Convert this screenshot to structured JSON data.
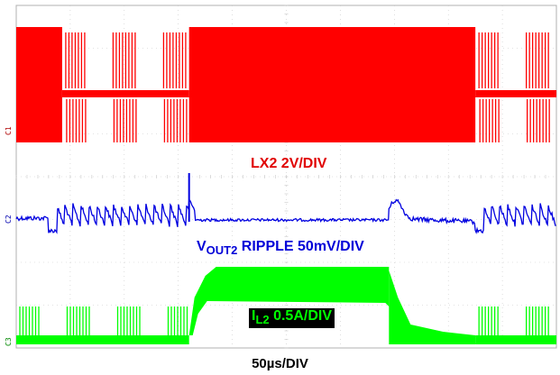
{
  "chart_data": {
    "type": "line",
    "title": "",
    "xlabel": "50µs/DIV",
    "ylabel": "",
    "grid": true,
    "time_per_division_us": 50,
    "divisions": {
      "x": 10,
      "y": 8
    },
    "series": [
      {
        "name": "LX2 2V/DIV",
        "color": "#ff0000",
        "description": "switch node; burst-mode pulses, then continuous switching during load step, then burst pulses",
        "segments": [
          {
            "t_start_div": 0.0,
            "t_end_div": 0.85,
            "mode": "continuous"
          },
          {
            "t_start_div": 0.85,
            "t_end_div": 3.2,
            "mode": "burst"
          },
          {
            "t_start_div": 3.2,
            "t_end_div": 8.5,
            "mode": "continuous"
          },
          {
            "t_start_div": 8.5,
            "t_end_div": 10.0,
            "mode": "burst"
          }
        ]
      },
      {
        "name_prefix": "V",
        "name_sub": "OUT2",
        "name_suffix": " RIPPLE 50mV/DIV",
        "color": "#0000e0",
        "description": "output voltage ripple; sawtooth ripple in burst mode, flat during continuous mode, bump at load release",
        "segments": [
          {
            "t_start_div": 0.0,
            "t_end_div": 0.6,
            "mode": "flat_noise"
          },
          {
            "t_start_div": 0.6,
            "t_end_div": 3.2,
            "mode": "sawtooth"
          },
          {
            "t_start_div": 3.2,
            "t_end_div": 6.9,
            "mode": "flat"
          },
          {
            "t_start_div": 6.9,
            "t_end_div": 8.5,
            "mode": "bump_decay"
          },
          {
            "t_start_div": 8.5,
            "t_end_div": 10.0,
            "mode": "sawtooth"
          }
        ]
      },
      {
        "name_prefix": "I",
        "name_sub": "L2",
        "name_suffix": " 0.5A/DIV",
        "color": "#00ff00",
        "description": "inductor current; pulsed at light load, high level between ~3.2 and ~6.9 div",
        "levels_div": {
          "low": 0.0,
          "high": 1.8
        },
        "segments": [
          {
            "t_start_div": 0.0,
            "t_end_div": 3.2,
            "mode": "pulsed_low"
          },
          {
            "t_start_div": 3.2,
            "t_end_div": 6.9,
            "mode": "high"
          },
          {
            "t_start_div": 6.9,
            "t_end_div": 8.5,
            "mode": "decay_low"
          },
          {
            "t_start_div": 8.5,
            "t_end_div": 10.0,
            "mode": "pulsed_low"
          }
        ]
      }
    ]
  },
  "labels": {
    "lx2": "LX2 2V/DIV",
    "vout_prefix": "V",
    "vout_sub": "OUT2",
    "vout_suffix": " RIPPLE 50mV/DIV",
    "il_prefix": "I",
    "il_sub": "L2",
    "il_suffix": " 0.5A/DIV",
    "time": "50µs/DIV",
    "ch_markers": [
      "C1",
      "C2",
      "C3"
    ]
  },
  "colors": {
    "lx2": "#ff0000",
    "vout": "#0000e0",
    "il": "#00ff00",
    "grid": "#c8c8c8",
    "frame": "#b0b0b0",
    "il_label_bg": "#000000"
  }
}
